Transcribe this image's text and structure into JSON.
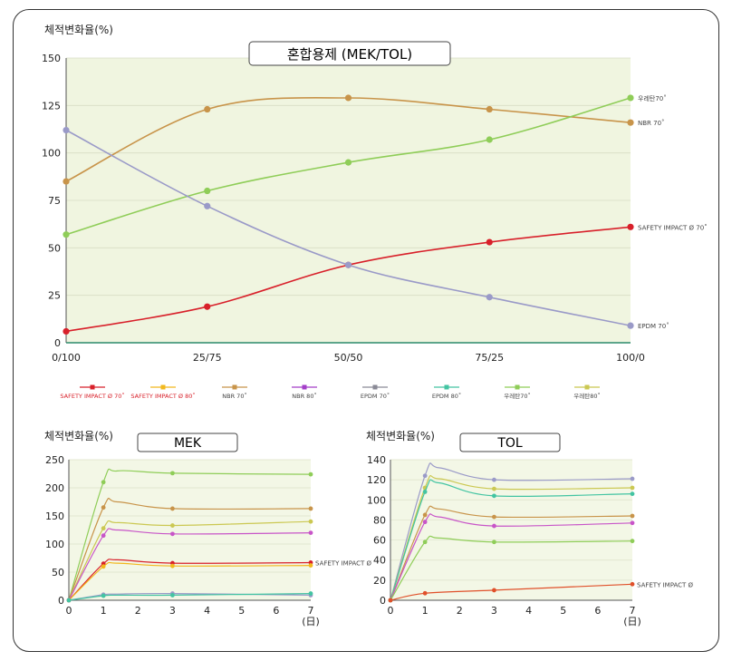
{
  "y_label": "체적변화율(%)",
  "series_meta": [
    {
      "name": "SAFETY IMPACT Ø 70˚",
      "color": "#d8202a"
    },
    {
      "name": "SAFETY IMPACT Ø 80˚",
      "color": "#f2b81e"
    },
    {
      "name": "NBR 70˚",
      "color": "#c8944a"
    },
    {
      "name": "NBR 80˚",
      "color": "#a33ec8"
    },
    {
      "name": "EPDM 70˚",
      "color": "#8a8a96"
    },
    {
      "name": "EPDM 80˚",
      "color": "#43c4a2"
    },
    {
      "name": "우레탄70˚",
      "color": "#8fcd58"
    },
    {
      "name": "우레탄80˚",
      "color": "#cbc852"
    }
  ],
  "chart_data": [
    {
      "type": "line",
      "title": "혼합용제 (MEK/TOL)",
      "ylabel": "체적변화율(%)",
      "categories": [
        "0/100",
        "25/75",
        "50/50",
        "75/25",
        "100/0"
      ],
      "yticks": [
        "0",
        "25",
        "50",
        "75",
        "100",
        "125",
        "150"
      ],
      "ylim": [
        0,
        150
      ],
      "series": [
        {
          "name": "SAFETY IMPACT Ø 70˚",
          "color": "#d8202a",
          "values": [
            6,
            19,
            41,
            53,
            61
          ],
          "end_label": "SAFETY IMPACT Ø 70˚"
        },
        {
          "name": "NBR 70˚",
          "color": "#c8944a",
          "values": [
            85,
            123,
            129,
            123,
            116
          ],
          "end_label": "NBR 70˚"
        },
        {
          "name": "우레탄70˚",
          "color": "#8fcd58",
          "values": [
            57,
            80,
            95,
            107,
            129
          ],
          "end_label": "우레탄70˚"
        },
        {
          "name": "EPDM 70˚",
          "color": "#9a9ac8",
          "values": [
            112,
            72,
            41,
            24,
            9
          ],
          "end_label": "EPDM 70˚"
        }
      ]
    },
    {
      "type": "line",
      "title": "MEK",
      "ylabel": "체적변화율(%)",
      "xlabel": "(日)",
      "x": [
        0,
        1,
        2,
        3,
        4,
        5,
        6,
        7
      ],
      "yticks": [
        "0",
        "50",
        "100",
        "150",
        "200",
        "250"
      ],
      "ylim": [
        0,
        250
      ],
      "series": [
        {
          "name": "우레탄70˚",
          "color": "#8fcd58",
          "points": [
            [
              0,
              0
            ],
            [
              1,
              210
            ],
            [
              1.4,
              230
            ],
            [
              3,
              226
            ],
            [
              7,
              224
            ]
          ]
        },
        {
          "name": "NBR 70˚",
          "color": "#c8944a",
          "points": [
            [
              0,
              0
            ],
            [
              1,
              165
            ],
            [
              1.4,
              175
            ],
            [
              3,
              163
            ],
            [
              7,
              163
            ]
          ]
        },
        {
          "name": "우레탄80˚",
          "color": "#cbc852",
          "points": [
            [
              0,
              0
            ],
            [
              1,
              128
            ],
            [
              1.4,
              138
            ],
            [
              3,
              133
            ],
            [
              7,
              140
            ]
          ]
        },
        {
          "name": "NBR 80˚",
          "color": "#c855c8",
          "points": [
            [
              0,
              0
            ],
            [
              1,
              115
            ],
            [
              1.4,
              125
            ],
            [
              3,
              118
            ],
            [
              7,
              120
            ]
          ]
        },
        {
          "name": "SAFETY IMPACT Ø 70˚",
          "color": "#d8202a",
          "points": [
            [
              0,
              0
            ],
            [
              1,
              65
            ],
            [
              1.4,
              72
            ],
            [
              3,
              66
            ],
            [
              7,
              67
            ]
          ],
          "end_label": "SAFETY IMPACT Ø"
        },
        {
          "name": "SAFETY IMPACT Ø 80˚",
          "color": "#f2b81e",
          "points": [
            [
              0,
              0
            ],
            [
              1,
              60
            ],
            [
              1.4,
              66
            ],
            [
              3,
              61
            ],
            [
              7,
              62
            ]
          ]
        },
        {
          "name": "EPDM 70˚",
          "color": "#9a9ac8",
          "points": [
            [
              0,
              0
            ],
            [
              1,
              10
            ],
            [
              1.4,
              11
            ],
            [
              3,
              12
            ],
            [
              7,
              9
            ]
          ]
        },
        {
          "name": "EPDM 80˚",
          "color": "#43c4a2",
          "points": [
            [
              0,
              0
            ],
            [
              1,
              8
            ],
            [
              1.4,
              9
            ],
            [
              3,
              9
            ],
            [
              7,
              12
            ]
          ]
        }
      ]
    },
    {
      "type": "line",
      "title": "TOL",
      "ylabel": "체적변화율(%)",
      "xlabel": "(日)",
      "x": [
        0,
        1,
        2,
        3,
        4,
        5,
        6,
        7
      ],
      "yticks": [
        "0",
        "20",
        "40",
        "60",
        "80",
        "100",
        "120",
        "140"
      ],
      "ylim": [
        0,
        140
      ],
      "series": [
        {
          "name": "EPDM 70˚",
          "color": "#9a9ac8",
          "points": [
            [
              0,
              0
            ],
            [
              1,
              124
            ],
            [
              1.4,
              132
            ],
            [
              3,
              120
            ],
            [
              7,
              121
            ]
          ]
        },
        {
          "name": "우레탄80˚",
          "color": "#cbc852",
          "points": [
            [
              0,
              0
            ],
            [
              1,
              112
            ],
            [
              1.4,
              121
            ],
            [
              3,
              111
            ],
            [
              7,
              112
            ]
          ]
        },
        {
          "name": "EPDM 80˚",
          "color": "#43c4a2",
          "points": [
            [
              0,
              0
            ],
            [
              1,
              108
            ],
            [
              1.4,
              117
            ],
            [
              3,
              104
            ],
            [
              7,
              106
            ]
          ]
        },
        {
          "name": "NBR 70˚",
          "color": "#c8944a",
          "points": [
            [
              0,
              0
            ],
            [
              1,
              85
            ],
            [
              1.4,
              91
            ],
            [
              3,
              83
            ],
            [
              7,
              84
            ]
          ]
        },
        {
          "name": "NBR 80˚",
          "color": "#c855c8",
          "points": [
            [
              0,
              0
            ],
            [
              1,
              78
            ],
            [
              1.4,
              83
            ],
            [
              3,
              74
            ],
            [
              7,
              77
            ]
          ]
        },
        {
          "name": "우레탄70˚",
          "color": "#8fcd58",
          "points": [
            [
              0,
              0
            ],
            [
              1,
              58
            ],
            [
              1.4,
              62
            ],
            [
              3,
              58
            ],
            [
              7,
              59
            ]
          ]
        },
        {
          "name": "SAFETY IMPACT Ø 70˚",
          "color": "#e0502a",
          "points": [
            [
              0,
              0
            ],
            [
              1,
              7
            ],
            [
              3,
              10
            ],
            [
              7,
              16
            ]
          ],
          "end_label": "SAFETY IMPACT Ø"
        }
      ]
    }
  ]
}
